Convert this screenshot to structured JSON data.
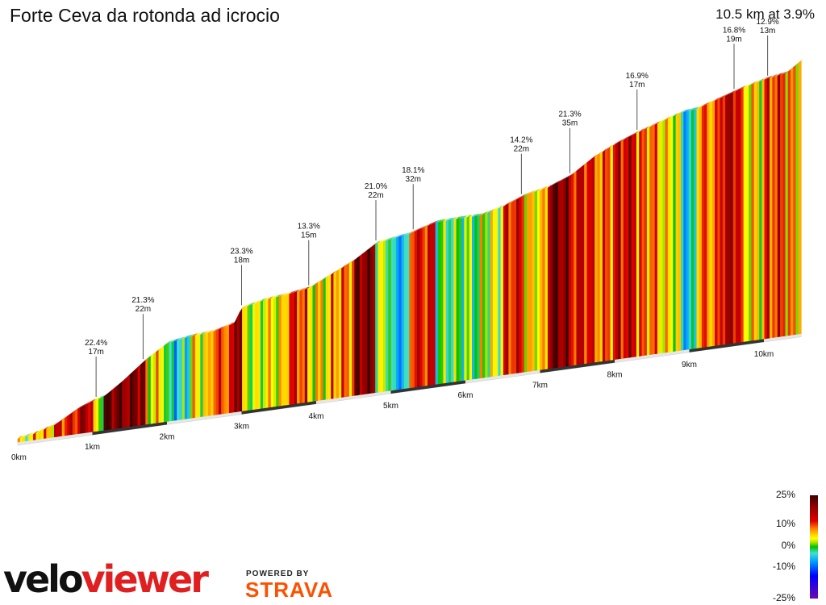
{
  "header": {
    "title": "Forte Ceva da rotonda ad icrocio",
    "summary": "10.5 km at 3.9%"
  },
  "chart_data": {
    "type": "area",
    "title": "Forte Ceva da rotonda ad icrocio",
    "subtitle": "10.5 km at 3.9%",
    "x_unit": "km",
    "x_ticks": [
      "0km",
      "1km",
      "2km",
      "3km",
      "4km",
      "5km",
      "6km",
      "7km",
      "8km",
      "9km",
      "10km"
    ],
    "distance_km": [
      0,
      0.2,
      0.5,
      0.8,
      1.0,
      1.15,
      1.4,
      1.7,
      2.0,
      2.3,
      2.6,
      2.9,
      3.0,
      3.3,
      3.6,
      3.9,
      4.2,
      4.5,
      4.8,
      5.0,
      5.25,
      5.6,
      5.9,
      6.2,
      6.5,
      6.8,
      7.1,
      7.4,
      7.7,
      8.0,
      8.3,
      8.6,
      8.9,
      9.1,
      9.4,
      9.7,
      10.0,
      10.3,
      10.5
    ],
    "elevation_m": [
      0,
      3,
      12,
      30,
      38,
      42,
      60,
      85,
      105,
      110,
      112,
      120,
      140,
      147,
      150,
      155,
      170,
      185,
      205,
      208,
      212,
      223,
      224,
      224,
      232,
      244,
      250,
      262,
      283,
      298,
      310,
      320,
      330,
      332,
      342,
      352,
      360,
      365,
      380
    ],
    "gradient_pct": [
      2,
      4,
      8,
      14,
      18,
      3,
      22,
      21,
      5,
      -4,
      5,
      12,
      23,
      3,
      5,
      13,
      6,
      10,
      21,
      2,
      -6,
      14,
      0,
      0,
      3,
      14,
      6,
      21,
      15,
      11,
      16,
      10,
      5,
      -5,
      10,
      17,
      6,
      13,
      8
    ],
    "annotations": [
      {
        "pct": "22.4%",
        "len": "17m",
        "km": 1.05
      },
      {
        "pct": "21.3%",
        "len": "22m",
        "km": 1.68
      },
      {
        "pct": "23.3%",
        "len": "18m",
        "km": 3.0
      },
      {
        "pct": "13.3%",
        "len": "15m",
        "km": 3.9
      },
      {
        "pct": "21.0%",
        "len": "22m",
        "km": 4.8
      },
      {
        "pct": "18.1%",
        "len": "32m",
        "km": 5.3
      },
      {
        "pct": "14.2%",
        "len": "22m",
        "km": 6.75
      },
      {
        "pct": "21.3%",
        "len": "35m",
        "km": 7.4
      },
      {
        "pct": "16.9%",
        "len": "17m",
        "km": 8.3
      },
      {
        "pct": "16.8%",
        "len": "19m",
        "km": 9.6
      },
      {
        "pct": "12.9%",
        "len": "13m",
        "km": 10.05
      }
    ],
    "legend": {
      "placement": "bottom-right",
      "labels": [
        "25%",
        "10%",
        "0%",
        "-10%",
        "-25%"
      ],
      "values": [
        25,
        10,
        0,
        -10,
        -25
      ]
    }
  },
  "branding": {
    "logo_velo": "velo",
    "logo_viewer": "viewer",
    "powered_by": "POWERED BY",
    "strava": "STRAVA"
  }
}
